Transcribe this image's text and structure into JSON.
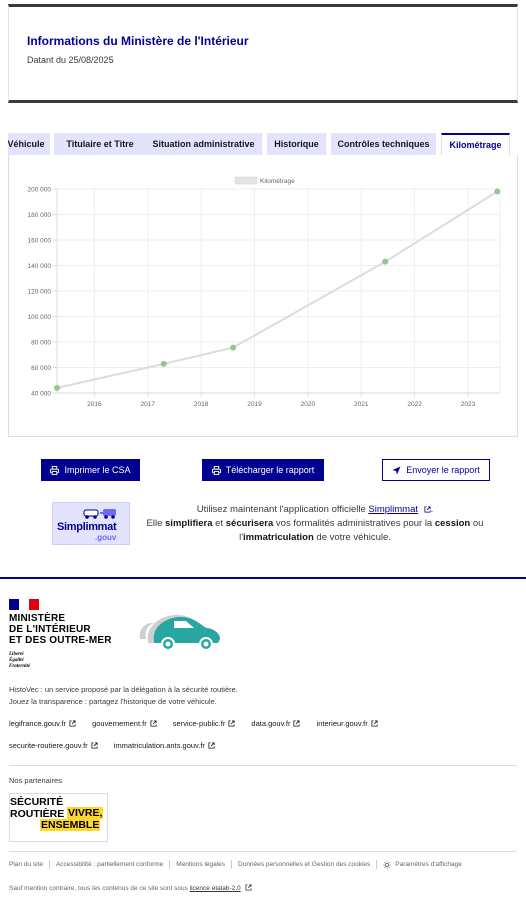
{
  "info": {
    "title": "Informations du Ministère de l'Intérieur",
    "date": "Datant du 25/08/2025"
  },
  "tabs": [
    {
      "label": "Véhicule"
    },
    {
      "label": "Titulaire et Titre"
    },
    {
      "label": "Situation administrative"
    },
    {
      "label": "Historique"
    },
    {
      "label": "Contrôles techniques"
    },
    {
      "label": "Kilométrage",
      "active": true
    }
  ],
  "chart_data": {
    "type": "line",
    "series": [
      {
        "name": "Kilométrage",
        "color": "#dcdcdc",
        "point_color": "#8fcb8f",
        "points": [
          {
            "x": 2015.3,
            "y": 44000
          },
          {
            "x": 2017.3,
            "y": 62800
          },
          {
            "x": 2018.6,
            "y": 75600
          },
          {
            "x": 2021.45,
            "y": 143000
          },
          {
            "x": 2023.55,
            "y": 198000
          }
        ]
      }
    ],
    "xlim": [
      2015.3,
      2023.6
    ],
    "ylim": [
      40000,
      200000
    ],
    "x_ticks": [
      "2016",
      "2017",
      "2018",
      "2019",
      "2020",
      "2021",
      "2022",
      "2023"
    ],
    "x_tick_values": [
      2016,
      2017,
      2018,
      2019,
      2020,
      2021,
      2022,
      2023
    ],
    "y_ticks": [
      "40 000",
      "60 000",
      "80 000",
      "100 000",
      "120 000",
      "140 000",
      "160 000",
      "180 000",
      "200 000"
    ],
    "y_tick_values": [
      40000,
      60000,
      80000,
      100000,
      120000,
      140000,
      160000,
      180000,
      200000
    ],
    "grid": true,
    "legend_position": "top-center"
  },
  "buttons": {
    "print_csa": "Imprimer le CSA",
    "download_report": "Télécharger le rapport",
    "send_report": "Envoyer le rapport"
  },
  "simplimmat": {
    "logo_text": "Simplimmat",
    "logo_sub": ".gouv",
    "line1_pre": "Utilisez maintenant l'application officielle ",
    "line1_link": "Simplimmat",
    "line1_post": ".",
    "line2_a": "Elle ",
    "line2_b": "simplifiera",
    "line2_c": " et ",
    "line2_d": "sécurisera",
    "line2_e": " vos formalités administratives pour la ",
    "line2_f": "cession",
    "line2_g": " ou",
    "line3_a": "l'",
    "line3_b": "immatriculation",
    "line3_c": " de votre véhicule."
  },
  "footer": {
    "ministry_l1": "MINISTÈRE",
    "ministry_l2": "DE L'INTÉRIEUR",
    "ministry_l3": "ET DES OUTRE-MER",
    "devise_l1": "Liberté",
    "devise_l2": "Égalité",
    "devise_l3": "Fraternité",
    "flag_colors": [
      "#000091",
      "#ffffff",
      "#e1000f"
    ],
    "desc_l1": "HistoVec : un service proposé par la délégation à la sécurité routière.",
    "desc_l2": "Jouez la transparence : partagez l'historique de votre véhicule.",
    "links_row1": [
      "legifrance.gouv.fr",
      "gouvernement.fr",
      "service-public.fr",
      "data.gouv.fr",
      "interieur.gouv.fr"
    ],
    "links_row2": [
      "securite-routiere.gouv.fr",
      "immatriculation.ants.gouv.fr"
    ],
    "partners_label": "Nos partenaires",
    "partner_l1": "SÉCURITÉ",
    "partner_l2": "ROUTIÈRE",
    "partner_l3": "VIVRE,",
    "partner_l4": "ENSEMBLE",
    "bottom_links": [
      "Plan du site",
      "Accessibilité : partiellement conforme",
      "Mentions légales",
      "Données personnelles et Gestion des cookies",
      "Paramètres d'affichage"
    ],
    "license_pre": "Sauf mention contraire, tous les contenus de ce site sont sous ",
    "license_link": "licence etalab-2.0"
  }
}
